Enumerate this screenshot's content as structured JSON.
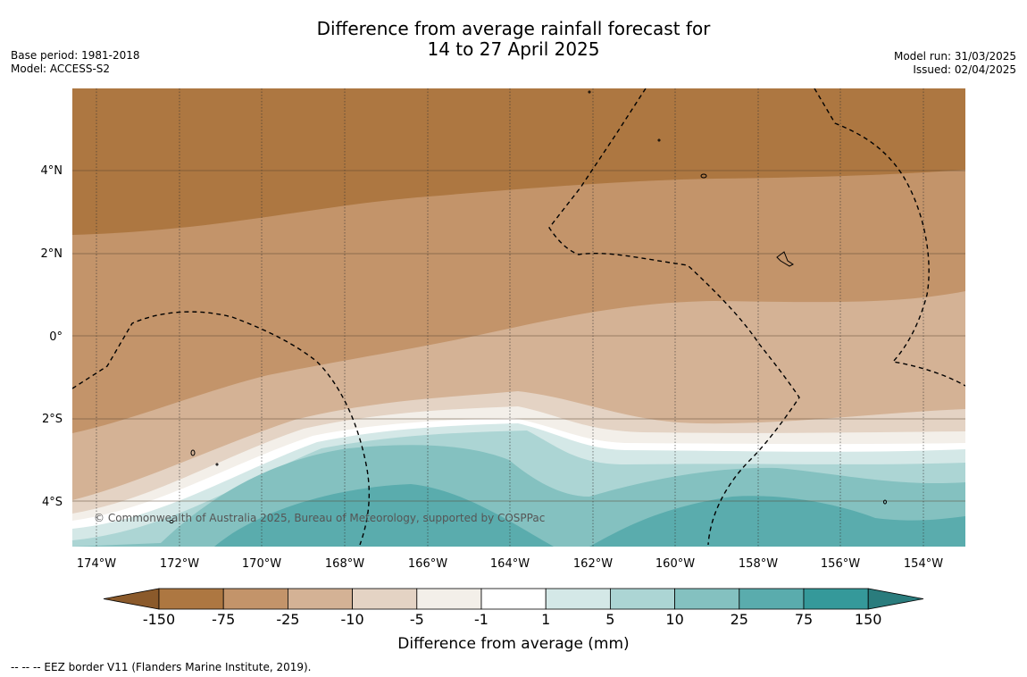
{
  "title": {
    "line1": "Difference from average rainfall forecast for",
    "line2": "14 to 27 April 2025"
  },
  "meta_left": {
    "base_period": "Base period: 1981-2018",
    "model": "Model: ACCESS-S2"
  },
  "meta_right": {
    "model_run": "Model run: 31/03/2025",
    "issued": "Issued: 02/04/2025"
  },
  "map": {
    "lat_ticks": [
      "4°N",
      "2°N",
      "0°",
      "2°S",
      "4°S"
    ],
    "lon_ticks": [
      "174°W",
      "172°W",
      "170°W",
      "168°W",
      "166°W",
      "164°W",
      "162°W",
      "160°W",
      "158°W",
      "156°W",
      "154°W"
    ],
    "copyright": "© Commonwealth of Australia 2025, Bureau of Meteorology, supported by COSPPac"
  },
  "colorbar": {
    "title": "Difference from average (mm)",
    "labels": [
      "-150",
      "-75",
      "-25",
      "-10",
      "-5",
      "-1",
      "1",
      "5",
      "10",
      "25",
      "75",
      "150"
    ],
    "colors": [
      "#ad7741",
      "#c3946a",
      "#d4b295",
      "#e4d3c4",
      "#f3efe9",
      "#ffffff",
      "#d4e8e7",
      "#acd5d4",
      "#84c1c0",
      "#5aacad",
      "#35999a"
    ],
    "low_extend_color": "#8b5a2b",
    "high_extend_color": "#2a7c7d"
  },
  "footnote": "--  --  -- EEZ border V11 (Flanders Marine Institute, 2019)."
}
